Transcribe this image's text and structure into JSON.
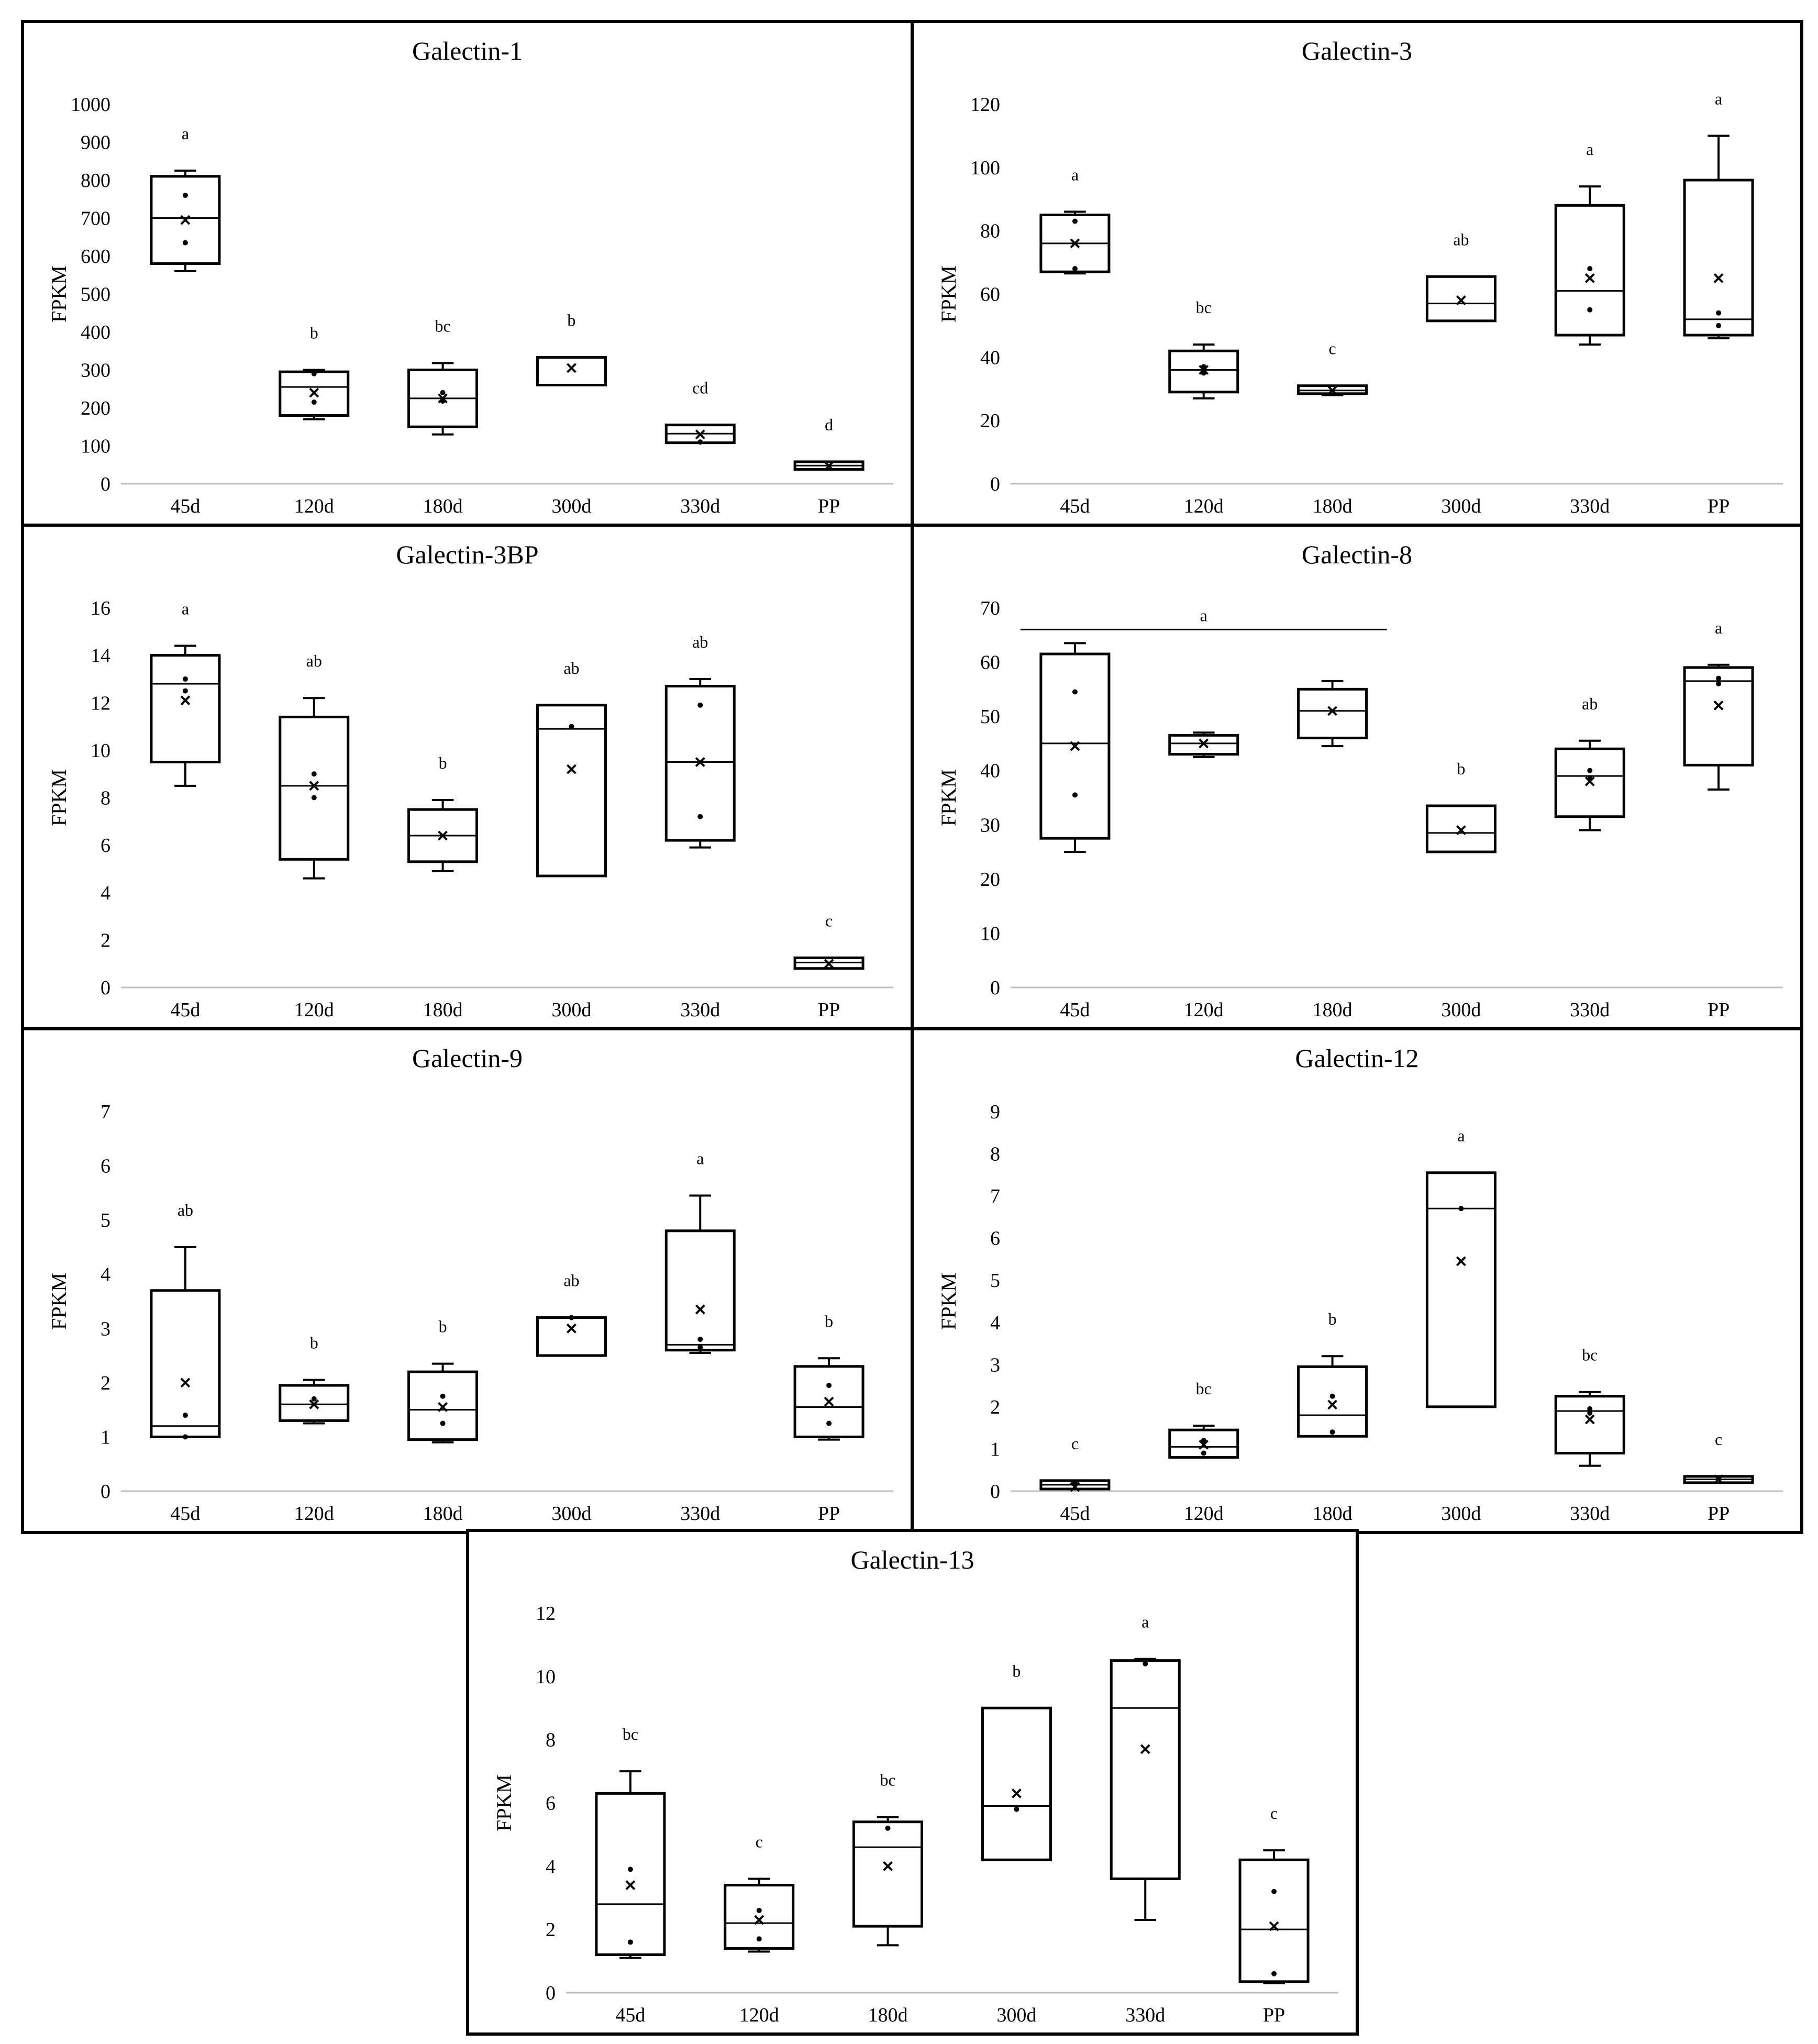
{
  "figure": {
    "x_tick_labels": [
      "45d",
      "120d",
      "180d",
      "300d",
      "330d",
      "PP"
    ],
    "ylabel": "FPKM"
  },
  "chart_data": [
    {
      "type": "boxplot",
      "title": "Galectin-1",
      "ylabel": "FPKM",
      "ylim": [
        0,
        1000
      ],
      "yticks": [
        0,
        100,
        200,
        300,
        400,
        500,
        600,
        700,
        800,
        900,
        1000
      ],
      "categories": [
        "45d",
        "120d",
        "180d",
        "300d",
        "330d",
        "PP"
      ],
      "boxes": [
        {
          "label": "45d",
          "min": 560,
          "q1": 580,
          "median": 700,
          "q3": 810,
          "max": 825,
          "mean": 695,
          "points": [
            760,
            635
          ],
          "sig": "a"
        },
        {
          "label": "120d",
          "min": 170,
          "q1": 180,
          "median": 255,
          "q3": 295,
          "max": 300,
          "mean": 240,
          "points": [
            290,
            215
          ],
          "sig": "b"
        },
        {
          "label": "180d",
          "min": 130,
          "q1": 150,
          "median": 225,
          "q3": 300,
          "max": 318,
          "mean": 225,
          "points": [
            240,
            218
          ],
          "sig": "bc"
        },
        {
          "label": "300d",
          "min": 260,
          "q1": 260,
          "median": 332,
          "q3": 333,
          "max": 333,
          "mean": 305,
          "points": [],
          "sig": "b"
        },
        {
          "label": "330d",
          "min": 108,
          "q1": 108,
          "median": 132,
          "q3": 155,
          "max": 155,
          "mean": 130,
          "points": [
            110
          ],
          "sig": "cd"
        },
        {
          "label": "PP",
          "min": 38,
          "q1": 38,
          "median": 48,
          "q3": 58,
          "max": 58,
          "mean": 47,
          "points": [],
          "sig": "d"
        }
      ]
    },
    {
      "type": "boxplot",
      "title": "Galectin-3",
      "ylabel": "FPKM",
      "ylim": [
        0,
        120
      ],
      "yticks": [
        0,
        20,
        40,
        60,
        80,
        100,
        120
      ],
      "categories": [
        "45d",
        "120d",
        "180d",
        "300d",
        "330d",
        "PP"
      ],
      "boxes": [
        {
          "label": "45d",
          "min": 66.5,
          "q1": 67,
          "median": 76,
          "q3": 85,
          "max": 86,
          "mean": 76,
          "points": [
            83,
            68
          ],
          "sig": "a"
        },
        {
          "label": "120d",
          "min": 27,
          "q1": 29,
          "median": 36,
          "q3": 42,
          "max": 44,
          "mean": 36,
          "points": [
            37,
            35
          ],
          "sig": "bc"
        },
        {
          "label": "180d",
          "min": 28,
          "q1": 28.5,
          "median": 29.5,
          "q3": 31,
          "max": 31,
          "mean": 29.5,
          "points": [],
          "sig": "c"
        },
        {
          "label": "300d",
          "min": 51.5,
          "q1": 51.5,
          "median": 57,
          "q3": 65.5,
          "max": 65.5,
          "mean": 58,
          "points": [],
          "sig": "ab"
        },
        {
          "label": "330d",
          "min": 44,
          "q1": 47,
          "median": 61,
          "q3": 88,
          "max": 94,
          "mean": 65,
          "points": [
            68,
            55
          ],
          "sig": "a"
        },
        {
          "label": "PP",
          "min": 46,
          "q1": 47,
          "median": 52,
          "q3": 96,
          "max": 110,
          "mean": 65,
          "points": [
            54,
            50
          ],
          "sig": "a"
        }
      ]
    },
    {
      "type": "boxplot",
      "title": "Galectin-3BP",
      "ylabel": "FPKM",
      "ylim": [
        0,
        16
      ],
      "yticks": [
        0,
        2,
        4,
        6,
        8,
        10,
        12,
        14,
        16
      ],
      "categories": [
        "45d",
        "120d",
        "180d",
        "300d",
        "330d",
        "PP"
      ],
      "boxes": [
        {
          "label": "45d",
          "min": 8.5,
          "q1": 9.5,
          "median": 12.8,
          "q3": 14,
          "max": 14.4,
          "mean": 12.1,
          "points": [
            13,
            12.5
          ],
          "sig": "a"
        },
        {
          "label": "120d",
          "min": 4.6,
          "q1": 5.4,
          "median": 8.5,
          "q3": 11.4,
          "max": 12.2,
          "mean": 8.5,
          "points": [
            9,
            8
          ],
          "sig": "ab"
        },
        {
          "label": "180d",
          "min": 4.9,
          "q1": 5.3,
          "median": 6.4,
          "q3": 7.5,
          "max": 7.9,
          "mean": 6.4,
          "points": [],
          "sig": "b"
        },
        {
          "label": "300d",
          "min": 4.7,
          "q1": 4.7,
          "median": 10.9,
          "q3": 11.9,
          "max": 11.9,
          "mean": 9.2,
          "points": [
            11
          ],
          "sig": "ab"
        },
        {
          "label": "330d",
          "min": 5.9,
          "q1": 6.2,
          "median": 9.5,
          "q3": 12.7,
          "max": 13,
          "mean": 9.5,
          "points": [
            11.9,
            7.2
          ],
          "sig": "ab"
        },
        {
          "label": "PP",
          "min": 0.8,
          "q1": 0.8,
          "median": 1.05,
          "q3": 1.25,
          "max": 1.25,
          "mean": 1.0,
          "points": [],
          "sig": "c"
        }
      ]
    },
    {
      "type": "boxplot",
      "title": "Galectin-8",
      "ylabel": "FPKM",
      "ylim": [
        0,
        70
      ],
      "yticks": [
        0,
        10,
        20,
        30,
        40,
        50,
        60,
        70
      ],
      "categories": [
        "45d",
        "120d",
        "180d",
        "300d",
        "330d",
        "PP"
      ],
      "group_line": {
        "from": "45d",
        "to": "180d",
        "label": "a",
        "y": 66
      },
      "boxes": [
        {
          "label": "45d",
          "min": 25,
          "q1": 27.5,
          "median": 45,
          "q3": 61.5,
          "max": 63.5,
          "mean": 44.5,
          "points": [
            54.5,
            35.5
          ],
          "sig": ""
        },
        {
          "label": "120d",
          "min": 42.5,
          "q1": 43,
          "median": 45,
          "q3": 46.5,
          "max": 47,
          "mean": 45,
          "points": [],
          "sig": ""
        },
        {
          "label": "180d",
          "min": 44.5,
          "q1": 46,
          "median": 51,
          "q3": 55,
          "max": 56.5,
          "mean": 51,
          "points": [],
          "sig": ""
        },
        {
          "label": "300d",
          "min": 25,
          "q1": 25,
          "median": 28.5,
          "q3": 33.5,
          "max": 33.5,
          "mean": 29,
          "points": [],
          "sig": "b"
        },
        {
          "label": "330d",
          "min": 29,
          "q1": 31.5,
          "median": 39,
          "q3": 44,
          "max": 45.5,
          "mean": 38,
          "points": [
            40,
            38.5
          ],
          "sig": "ab"
        },
        {
          "label": "PP",
          "min": 36.5,
          "q1": 41,
          "median": 56.5,
          "q3": 59,
          "max": 59.5,
          "mean": 52,
          "points": [
            57,
            56
          ],
          "sig": "a"
        }
      ]
    },
    {
      "type": "boxplot",
      "title": "Galectin-9",
      "ylabel": "FPKM",
      "ylim": [
        0,
        7
      ],
      "yticks": [
        0,
        1,
        2,
        3,
        4,
        5,
        6,
        7
      ],
      "categories": [
        "45d",
        "120d",
        "180d",
        "300d",
        "330d",
        "PP"
      ],
      "boxes": [
        {
          "label": "45d",
          "min": 1.0,
          "q1": 1.0,
          "median": 1.2,
          "q3": 3.7,
          "max": 4.5,
          "mean": 2.0,
          "points": [
            1.4,
            1.0
          ],
          "sig": "ab"
        },
        {
          "label": "120d",
          "min": 1.25,
          "q1": 1.3,
          "median": 1.6,
          "q3": 1.95,
          "max": 2.05,
          "mean": 1.6,
          "points": [
            1.7
          ],
          "sig": "b"
        },
        {
          "label": "180d",
          "min": 0.9,
          "q1": 0.95,
          "median": 1.5,
          "q3": 2.2,
          "max": 2.35,
          "mean": 1.55,
          "points": [
            1.75,
            1.25
          ],
          "sig": "b"
        },
        {
          "label": "300d",
          "min": 2.5,
          "q1": 2.5,
          "median": 3.2,
          "q3": 3.2,
          "max": 3.2,
          "mean": 3.0,
          "points": [
            3.2
          ],
          "sig": "ab"
        },
        {
          "label": "330d",
          "min": 2.55,
          "q1": 2.6,
          "median": 2.7,
          "q3": 4.8,
          "max": 5.45,
          "mean": 3.35,
          "points": [
            2.8,
            2.65
          ],
          "sig": "a"
        },
        {
          "label": "PP",
          "min": 0.95,
          "q1": 1.0,
          "median": 1.55,
          "q3": 2.3,
          "max": 2.45,
          "mean": 1.65,
          "points": [
            1.95,
            1.25
          ],
          "sig": "b"
        }
      ]
    },
    {
      "type": "boxplot",
      "title": "Galectin-12",
      "ylabel": "FPKM",
      "ylim": [
        0,
        9
      ],
      "yticks": [
        0,
        1,
        2,
        3,
        4,
        5,
        6,
        7,
        8,
        9
      ],
      "categories": [
        "45d",
        "120d",
        "180d",
        "300d",
        "330d",
        "PP"
      ],
      "boxes": [
        {
          "label": "45d",
          "min": 0.05,
          "q1": 0.05,
          "median": 0.15,
          "q3": 0.25,
          "max": 0.25,
          "mean": 0.1,
          "points": [
            0.2
          ],
          "sig": "c"
        },
        {
          "label": "120d",
          "min": 0.8,
          "q1": 0.8,
          "median": 1.05,
          "q3": 1.45,
          "max": 1.55,
          "mean": 1.1,
          "points": [
            1.2,
            0.9
          ],
          "sig": "bc"
        },
        {
          "label": "180d",
          "min": 1.3,
          "q1": 1.3,
          "median": 1.8,
          "q3": 2.95,
          "max": 3.2,
          "mean": 2.05,
          "points": [
            2.25,
            1.4
          ],
          "sig": "b"
        },
        {
          "label": "300d",
          "min": 2.0,
          "q1": 2.0,
          "median": 6.7,
          "q3": 7.55,
          "max": 7.55,
          "mean": 5.45,
          "points": [
            6.7
          ],
          "sig": "a"
        },
        {
          "label": "330d",
          "min": 0.6,
          "q1": 0.9,
          "median": 1.9,
          "q3": 2.25,
          "max": 2.35,
          "mean": 1.7,
          "points": [
            1.95,
            1.85
          ],
          "sig": "bc"
        },
        {
          "label": "PP",
          "min": 0.2,
          "q1": 0.2,
          "median": 0.28,
          "q3": 0.35,
          "max": 0.35,
          "mean": 0.28,
          "points": [],
          "sig": "c"
        }
      ]
    },
    {
      "type": "boxplot",
      "title": "Galectin-13",
      "ylabel": "FPKM",
      "ylim": [
        0,
        12
      ],
      "yticks": [
        0,
        2,
        4,
        6,
        8,
        10,
        12
      ],
      "categories": [
        "45d",
        "120d",
        "180d",
        "300d",
        "330d",
        "PP"
      ],
      "boxes": [
        {
          "label": "45d",
          "min": 1.1,
          "q1": 1.2,
          "median": 2.8,
          "q3": 6.3,
          "max": 7.0,
          "mean": 3.4,
          "points": [
            3.9,
            1.6
          ],
          "sig": "bc"
        },
        {
          "label": "120d",
          "min": 1.3,
          "q1": 1.4,
          "median": 2.2,
          "q3": 3.4,
          "max": 3.6,
          "mean": 2.3,
          "points": [
            2.6,
            1.7
          ],
          "sig": "c"
        },
        {
          "label": "180d",
          "min": 1.5,
          "q1": 2.1,
          "median": 4.6,
          "q3": 5.4,
          "max": 5.55,
          "mean": 4.0,
          "points": [
            5.2
          ],
          "sig": "bc"
        },
        {
          "label": "300d",
          "min": 4.2,
          "q1": 4.2,
          "median": 5.9,
          "q3": 9.0,
          "max": 9.0,
          "mean": 6.3,
          "points": [
            5.8
          ],
          "sig": "b"
        },
        {
          "label": "330d",
          "min": 2.3,
          "q1": 3.6,
          "median": 9.0,
          "q3": 10.5,
          "max": 10.55,
          "mean": 7.7,
          "points": [
            10.4
          ],
          "sig": "a"
        },
        {
          "label": "PP",
          "min": 0.3,
          "q1": 0.35,
          "median": 2.0,
          "q3": 4.2,
          "max": 4.5,
          "mean": 2.1,
          "points": [
            3.2,
            0.6
          ],
          "sig": "c"
        }
      ]
    }
  ]
}
